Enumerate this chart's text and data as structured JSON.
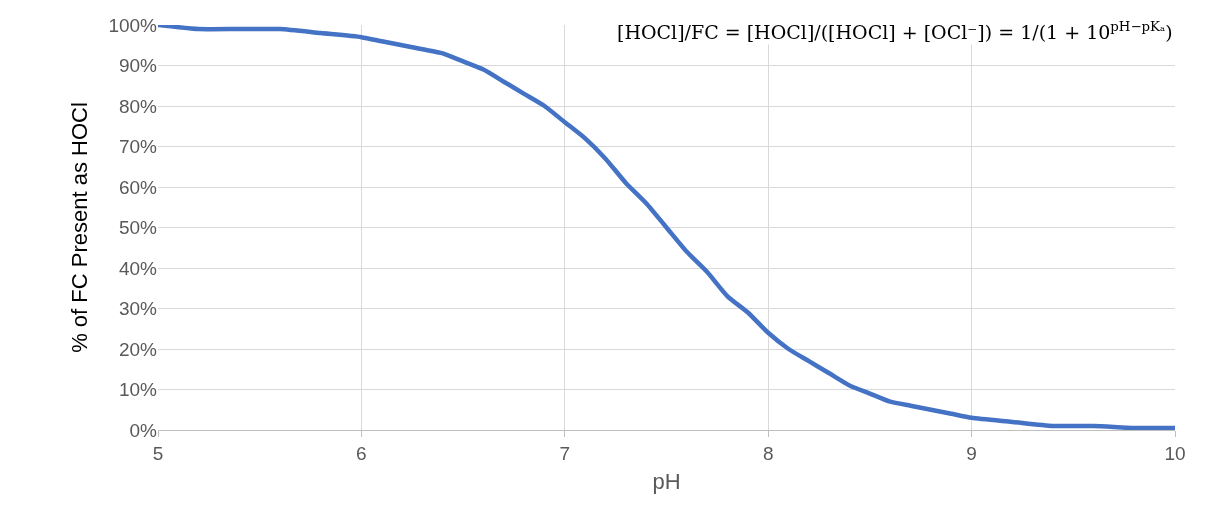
{
  "chart_data": {
    "type": "line",
    "xlabel": "pH",
    "ylabel": "% of FC Present as HOCl",
    "x": [
      5,
      5.2,
      5.4,
      5.6,
      5.8,
      6,
      6.1,
      6.2,
      6.3,
      6.4,
      6.5,
      6.6,
      6.7,
      6.8,
      6.9,
      7,
      7.1,
      7.2,
      7.3,
      7.4,
      7.5,
      7.6,
      7.7,
      7.8,
      7.9,
      8,
      8.1,
      8.2,
      8.3,
      8.4,
      8.5,
      8.6,
      8.7,
      8.8,
      8.9,
      9,
      9.2,
      9.4,
      9.6,
      9.8,
      10
    ],
    "series": [
      {
        "color": "#4472c4",
        "values": [
          100,
          99,
          99,
          99,
          98,
          97,
          96,
          95,
          94,
          93,
          91,
          89,
          86,
          83,
          80,
          76,
          72,
          67,
          61,
          56,
          50,
          44,
          39,
          33,
          29,
          24,
          20,
          17,
          14,
          11,
          9,
          7,
          6,
          5,
          4,
          3,
          2,
          1,
          1,
          0.5,
          0.5
        ]
      }
    ],
    "xlim": [
      5,
      10
    ],
    "xticks": [
      5,
      6,
      7,
      8,
      9,
      10
    ],
    "ylim": [
      0,
      100
    ],
    "yticks": [
      {
        "value": 0,
        "label": "0%"
      },
      {
        "value": 10,
        "label": "10%"
      },
      {
        "value": 20,
        "label": "20%"
      },
      {
        "value": 30,
        "label": "30%"
      },
      {
        "value": 40,
        "label": "40%"
      },
      {
        "value": 50,
        "label": "50%"
      },
      {
        "value": 60,
        "label": "60%"
      },
      {
        "value": 70,
        "label": "70%"
      },
      {
        "value": 80,
        "label": "80%"
      },
      {
        "value": 90,
        "label": "90%"
      },
      {
        "value": 100,
        "label": "100%"
      }
    ],
    "grid": true,
    "marker": "none",
    "line_style": "solid",
    "annotations": [
      "[HOCl]/FC = [HOCl]/([HOCl] + [OCl⁻]) = 1/(1 + 10$^{pH−pKₐ}$)"
    ]
  }
}
